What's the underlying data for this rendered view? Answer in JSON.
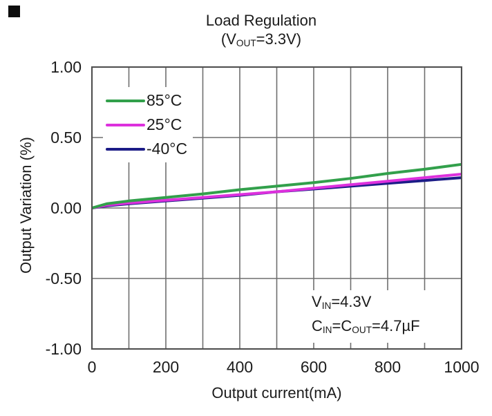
{
  "window": {
    "background": "#ffffff",
    "corner_mark_color": "#0d0d0d"
  },
  "chart_data": {
    "type": "line",
    "title": "Load Regulation",
    "subtitle_plain": "(VOUT=3.3V)",
    "subtitle_segments": [
      {
        "t": "(V"
      },
      {
        "t": "OUT",
        "sub": true
      },
      {
        "t": "=3.3V)"
      }
    ],
    "xlabel": "Output current(mA)",
    "ylabel": "Output Variation (%)",
    "xlim": [
      0,
      1000
    ],
    "ylim": [
      -1.0,
      1.0
    ],
    "x_ticks": [
      0,
      200,
      400,
      600,
      800,
      1000
    ],
    "x_grid_interval_mA": 100,
    "y_ticks": [
      {
        "label": "1.00",
        "value": 1.0
      },
      {
        "label": "0.50",
        "value": 0.5
      },
      {
        "label": "0.00",
        "value": 0.0
      },
      {
        "label": "-0.50",
        "value": -0.5
      },
      {
        "label": "-1.00",
        "value": -1.0
      }
    ],
    "grid": "on",
    "grid_color": "#6e6e6e",
    "frame_color": "#4f4f4f",
    "legend_position": "inside-top-left",
    "series": [
      {
        "name": "85°C",
        "color": "#32a04b",
        "x": [
          0,
          40,
          100,
          200,
          300,
          400,
          500,
          600,
          700,
          800,
          900,
          1000
        ],
        "values": [
          0.0,
          0.03,
          0.05,
          0.075,
          0.1,
          0.13,
          0.155,
          0.18,
          0.21,
          0.245,
          0.275,
          0.31
        ]
      },
      {
        "name": "25°C",
        "color": "#dd30dd",
        "x": [
          0,
          40,
          100,
          200,
          300,
          400,
          500,
          600,
          700,
          800,
          900,
          1000
        ],
        "values": [
          0.0,
          0.02,
          0.035,
          0.055,
          0.075,
          0.095,
          0.115,
          0.14,
          0.165,
          0.19,
          0.215,
          0.24
        ]
      },
      {
        "name": "-40°C",
        "color": "#1c1c87",
        "x": [
          0,
          40,
          100,
          200,
          300,
          400,
          500,
          600,
          700,
          800,
          900,
          1000
        ],
        "values": [
          0.0,
          0.015,
          0.03,
          0.05,
          0.07,
          0.09,
          0.115,
          0.135,
          0.155,
          0.175,
          0.195,
          0.215
        ]
      }
    ],
    "annotation_plain": [
      "VIN=4.3V",
      "CIN=COUT=4.7µF"
    ],
    "annotation_segments": [
      [
        {
          "t": "V"
        },
        {
          "t": "IN",
          "sub": true
        },
        {
          "t": "=4.3V"
        }
      ],
      [
        {
          "t": "C"
        },
        {
          "t": "IN",
          "sub": true
        },
        {
          "t": "=C"
        },
        {
          "t": "OUT",
          "sub": true
        },
        {
          "t": "=4.7µF"
        }
      ]
    ]
  }
}
